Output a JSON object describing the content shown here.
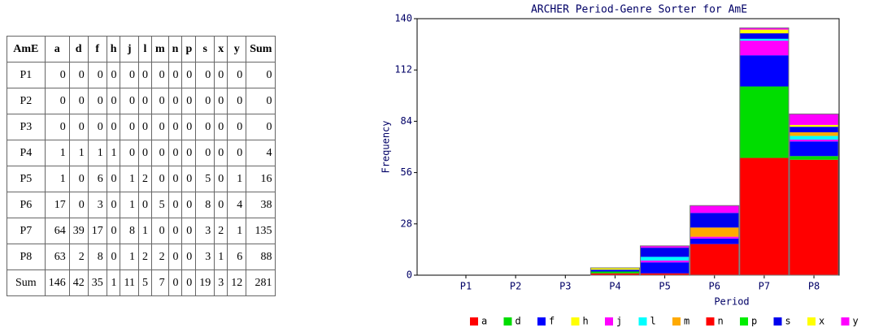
{
  "table": {
    "header": [
      "AmE",
      "a",
      "d",
      "f",
      "h",
      "j",
      "l",
      "m",
      "n",
      "p",
      "s",
      "x",
      "y",
      "Sum"
    ],
    "rows": [
      [
        "P1",
        0,
        0,
        0,
        0,
        0,
        0,
        0,
        0,
        0,
        0,
        0,
        0,
        0
      ],
      [
        "P2",
        0,
        0,
        0,
        0,
        0,
        0,
        0,
        0,
        0,
        0,
        0,
        0,
        0
      ],
      [
        "P3",
        0,
        0,
        0,
        0,
        0,
        0,
        0,
        0,
        0,
        0,
        0,
        0,
        0
      ],
      [
        "P4",
        1,
        1,
        1,
        1,
        0,
        0,
        0,
        0,
        0,
        0,
        0,
        0,
        4
      ],
      [
        "P5",
        1,
        0,
        6,
        0,
        1,
        2,
        0,
        0,
        0,
        5,
        0,
        1,
        16
      ],
      [
        "P6",
        17,
        0,
        3,
        0,
        1,
        0,
        5,
        0,
        0,
        8,
        0,
        4,
        38
      ],
      [
        "P7",
        64,
        39,
        17,
        0,
        8,
        1,
        0,
        0,
        0,
        3,
        2,
        1,
        135
      ],
      [
        "P8",
        63,
        2,
        8,
        0,
        1,
        2,
        2,
        0,
        0,
        3,
        1,
        6,
        88
      ],
      [
        "Sum",
        146,
        42,
        35,
        1,
        11,
        5,
        7,
        0,
        0,
        19,
        3,
        12,
        281
      ]
    ]
  },
  "chart_data": {
    "type": "stacked_bar",
    "title": "ARCHER Period-Genre Sorter for AmE",
    "x_label": "Period",
    "y_label": "Frequency",
    "categories": [
      "P1",
      "P2",
      "P3",
      "P4",
      "P5",
      "P6",
      "P7",
      "P8"
    ],
    "ylim": [
      0,
      140
    ],
    "yticks": [
      0,
      28,
      56,
      84,
      112,
      140
    ],
    "series": [
      {
        "name": "a",
        "color": "#ff0000",
        "values": [
          0,
          0,
          0,
          1,
          1,
          17,
          64,
          63
        ]
      },
      {
        "name": "d",
        "color": "#00dd00",
        "values": [
          0,
          0,
          0,
          1,
          0,
          0,
          39,
          2
        ]
      },
      {
        "name": "f",
        "color": "#0000ff",
        "values": [
          0,
          0,
          0,
          1,
          6,
          3,
          17,
          8
        ]
      },
      {
        "name": "h",
        "color": "#ffff00",
        "values": [
          0,
          0,
          0,
          1,
          0,
          0,
          0,
          0
        ]
      },
      {
        "name": "j",
        "color": "#ff00ff",
        "values": [
          0,
          0,
          0,
          0,
          1,
          1,
          8,
          1
        ]
      },
      {
        "name": "l",
        "color": "#00ffff",
        "values": [
          0,
          0,
          0,
          0,
          2,
          0,
          1,
          2
        ]
      },
      {
        "name": "m",
        "color": "#ffaa00",
        "values": [
          0,
          0,
          0,
          0,
          0,
          5,
          0,
          2
        ]
      },
      {
        "name": "n",
        "color": "#ff0000",
        "values": [
          0,
          0,
          0,
          0,
          0,
          0,
          0,
          0
        ]
      },
      {
        "name": "p",
        "color": "#00ee00",
        "values": [
          0,
          0,
          0,
          0,
          0,
          0,
          0,
          0
        ]
      },
      {
        "name": "s",
        "color": "#0000ee",
        "values": [
          0,
          0,
          0,
          0,
          5,
          8,
          3,
          3
        ]
      },
      {
        "name": "x",
        "color": "#ffff00",
        "values": [
          0,
          0,
          0,
          0,
          0,
          0,
          2,
          1
        ]
      },
      {
        "name": "y",
        "color": "#ff00ff",
        "values": [
          0,
          0,
          0,
          0,
          1,
          4,
          1,
          6
        ]
      }
    ]
  }
}
